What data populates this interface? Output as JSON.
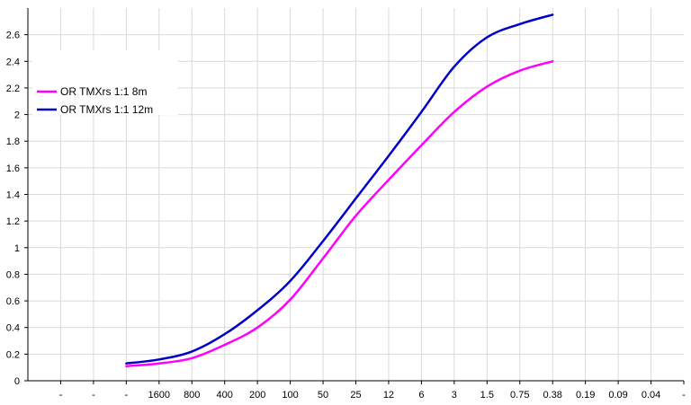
{
  "chart_data": {
    "type": "line",
    "title": "",
    "xlabel": "",
    "ylabel": "",
    "categories": [
      "-",
      "-",
      "-",
      "1600",
      "800",
      "400",
      "200",
      "100",
      "50",
      "25",
      "12",
      "6",
      "3",
      "1.5",
      "0.75",
      "0.38",
      "0.19",
      "0.09",
      "0.04",
      "-"
    ],
    "ylim": [
      0,
      2.8
    ],
    "yticks": [
      "0",
      "0.2",
      "0.4",
      "0.6",
      "0.8",
      "1",
      "1.2",
      "1.4",
      "1.6",
      "1.8",
      "2",
      "2.2",
      "2.4",
      "2.6"
    ],
    "grid": true,
    "legend_position": "top-left",
    "series": [
      {
        "name": "OR TMXrs 1:1 8m",
        "color": "#ff00ff",
        "values": [
          null,
          null,
          0.11,
          0.13,
          0.17,
          0.27,
          0.4,
          0.61,
          0.92,
          1.24,
          1.51,
          1.77,
          2.02,
          2.21,
          2.33,
          2.4,
          null,
          null,
          null,
          null
        ]
      },
      {
        "name": "OR TMXrs 1:1 12m",
        "color": "#0000c8",
        "values": [
          null,
          null,
          0.13,
          0.16,
          0.22,
          0.35,
          0.53,
          0.75,
          1.05,
          1.37,
          1.69,
          2.02,
          2.36,
          2.58,
          2.68,
          2.75,
          null,
          null,
          null,
          null
        ]
      }
    ]
  }
}
